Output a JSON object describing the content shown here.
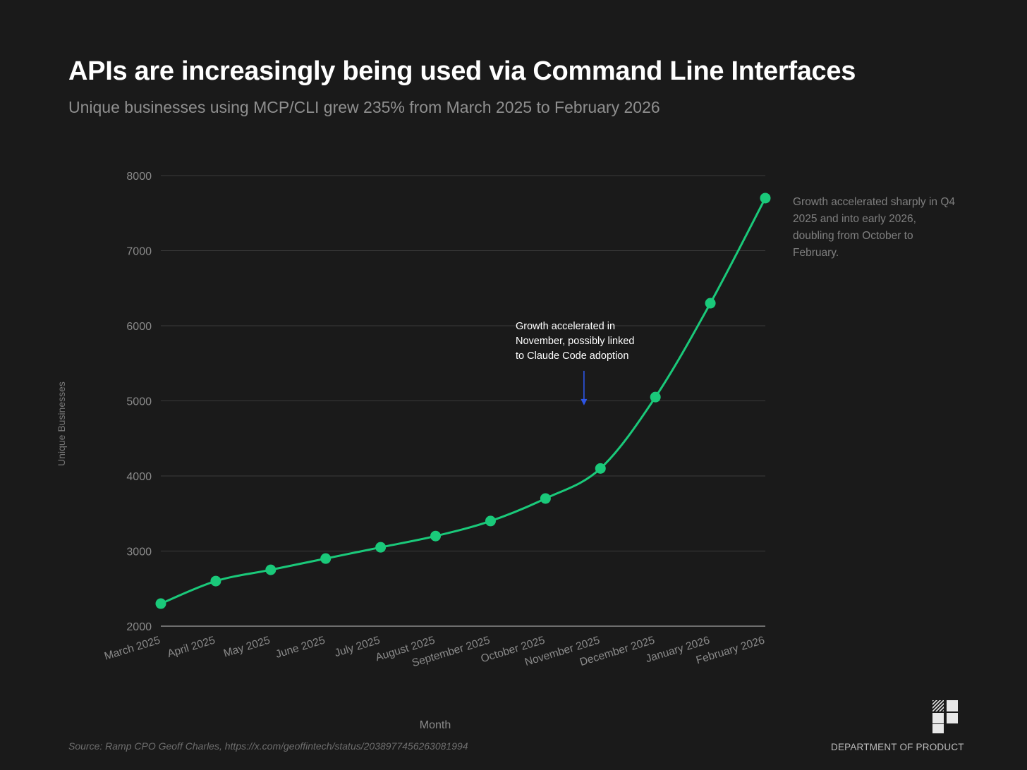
{
  "colors": {
    "background": "#1a1a1a",
    "line": "#1ac97a",
    "annotation_arrow": "#2d55e6",
    "gridline": "#3a3a3a",
    "axis_text": "#8a8a8a"
  },
  "header": {
    "title": "APIs are increasingly being used via Command Line Interfaces",
    "subtitle": "Unique businesses using MCP/CLI grew 235% from March 2025 to February 2026"
  },
  "side_note": "Growth accelerated sharply in Q4 2025 and into early 2026, doubling from October to February.",
  "footer": {
    "source": "Source: Ramp CPO Geoff Charles, https://x.com/geoffintech/status/2038977456263081994",
    "brand": "DEPARTMENT OF PRODUCT",
    "logo_icon": "department-of-product-logo-icon"
  },
  "chart_data": {
    "type": "line",
    "title": "APIs are increasingly being used via Command Line Interfaces",
    "xlabel": "Month",
    "ylabel": "Unique Businesses",
    "ylim": [
      2000,
      8000
    ],
    "yticks": [
      2000,
      3000,
      4000,
      5000,
      6000,
      7000,
      8000
    ],
    "grid": true,
    "categories": [
      "March 2025",
      "April 2025",
      "May 2025",
      "June 2025",
      "July 2025",
      "August 2025",
      "September 2025",
      "October 2025",
      "November 2025",
      "December 2025",
      "January 2026",
      "February 2026"
    ],
    "series": [
      {
        "name": "Unique Businesses",
        "values": [
          2300,
          2600,
          2750,
          2900,
          3050,
          3200,
          3400,
          3700,
          4100,
          5050,
          6300,
          7700
        ]
      }
    ],
    "annotations": [
      {
        "text_lines": [
          "Growth accelerated in",
          "November, possibly linked",
          "to Claude Code adoption"
        ],
        "arrow_x_index": 7.7,
        "arrow_from_y": 5400,
        "arrow_to_y": 4950
      }
    ]
  }
}
